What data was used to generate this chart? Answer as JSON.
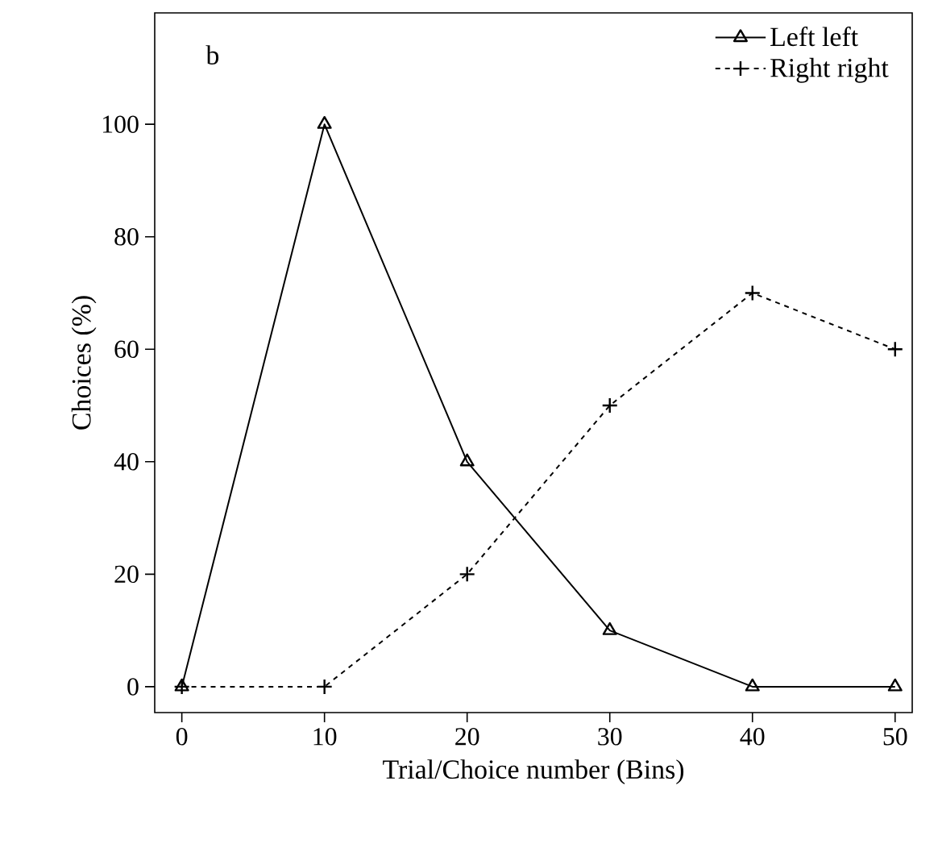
{
  "chart_data": {
    "type": "line",
    "annotations": [
      "b"
    ],
    "xlabel": "Trial/Choice number (Bins)",
    "ylabel": "Choices (%)",
    "x": [
      0,
      10,
      20,
      30,
      40,
      50
    ],
    "series": [
      {
        "name": "Left left",
        "color": "#000000",
        "values": [
          0,
          100,
          40,
          10,
          0,
          0
        ],
        "marker": "triangle",
        "line_style": "solid"
      },
      {
        "name": "Right right",
        "color": "#000000",
        "values": [
          0,
          0,
          20,
          50,
          70,
          60
        ],
        "marker": "cross",
        "line_style": "dashed"
      }
    ],
    "xlim": [
      -1.9,
      51.2
    ],
    "ylim": [
      -4.6,
      119.8
    ],
    "xticks": [
      0,
      10,
      20,
      30,
      40,
      50
    ],
    "yticks": [
      0,
      20,
      40,
      60,
      80,
      100
    ],
    "legend": "top right",
    "grid": false
  }
}
